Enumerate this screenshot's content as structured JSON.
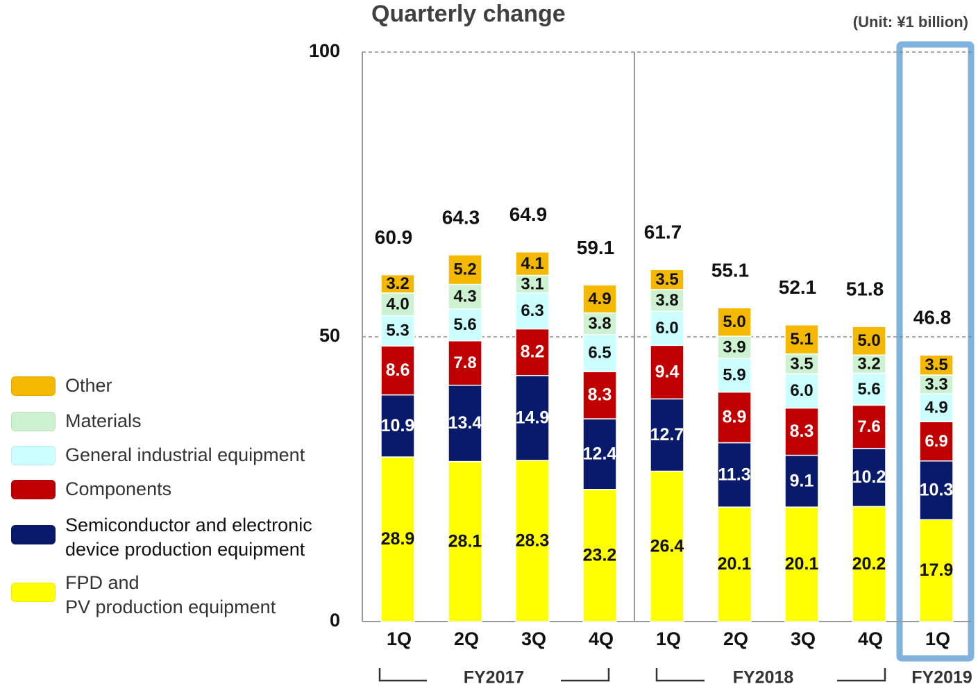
{
  "chart_data": {
    "type": "stacked_bar",
    "title": "Quarterly change",
    "unit_note": "(Unit: ¥1 billion)",
    "categories": [
      "1Q",
      "2Q",
      "3Q",
      "4Q",
      "1Q",
      "2Q",
      "3Q",
      "4Q",
      "1Q"
    ],
    "groups": [
      {
        "label": "FY2017",
        "count": 4
      },
      {
        "label": "FY2018",
        "count": 4
      },
      {
        "label": "FY2019",
        "count": 1
      }
    ],
    "ylim": [
      0,
      100
    ],
    "yticks": [
      0,
      50,
      100
    ],
    "grid": true,
    "series": [
      {
        "name": "FPD and\nPV production equipment",
        "color": "#ffff00",
        "values": [
          28.9,
          28.1,
          28.3,
          23.2,
          26.4,
          20.1,
          20.1,
          20.2,
          17.9
        ]
      },
      {
        "name": "Semiconductor and electronic\ndevice production equipment",
        "color": "#0a1a6b",
        "values": [
          10.9,
          13.4,
          14.9,
          12.4,
          12.7,
          11.3,
          9.1,
          10.2,
          10.3
        ]
      },
      {
        "name": "Components",
        "color": "#c00000",
        "values": [
          8.6,
          7.8,
          8.2,
          8.3,
          9.4,
          8.9,
          8.3,
          7.6,
          6.9
        ]
      },
      {
        "name": "General industrial equipment",
        "color": "#ccffff",
        "values": [
          5.3,
          5.6,
          6.3,
          6.5,
          6.0,
          5.9,
          6.0,
          5.6,
          4.9
        ],
        "value_labels": [
          "5.3",
          "5.6",
          "6.3",
          "6.5",
          "6.0",
          "5.9",
          "6.0",
          "5.6",
          "4.9"
        ]
      },
      {
        "name": "Materials",
        "color": "#ccf2d2",
        "values": [
          4.0,
          4.3,
          3.1,
          3.8,
          3.8,
          3.9,
          3.5,
          3.2,
          3.3
        ],
        "value_labels": [
          "4.0",
          "4.3",
          "3.1",
          "3.8",
          "3.8",
          "3.9",
          "3.5",
          "3.2",
          "3.3"
        ]
      },
      {
        "name": "Other",
        "color": "#f5b800",
        "values": [
          3.2,
          5.2,
          4.1,
          4.9,
          3.5,
          5.0,
          5.1,
          5.0,
          3.5
        ],
        "value_labels": [
          "3.2",
          "5.2",
          "4.1",
          "4.9",
          "3.5",
          "5.0",
          "5.1",
          "5.0",
          "3.5"
        ]
      }
    ],
    "totals": [
      60.9,
      64.3,
      64.9,
      59.1,
      61.7,
      55.1,
      52.1,
      51.8,
      46.8
    ]
  }
}
